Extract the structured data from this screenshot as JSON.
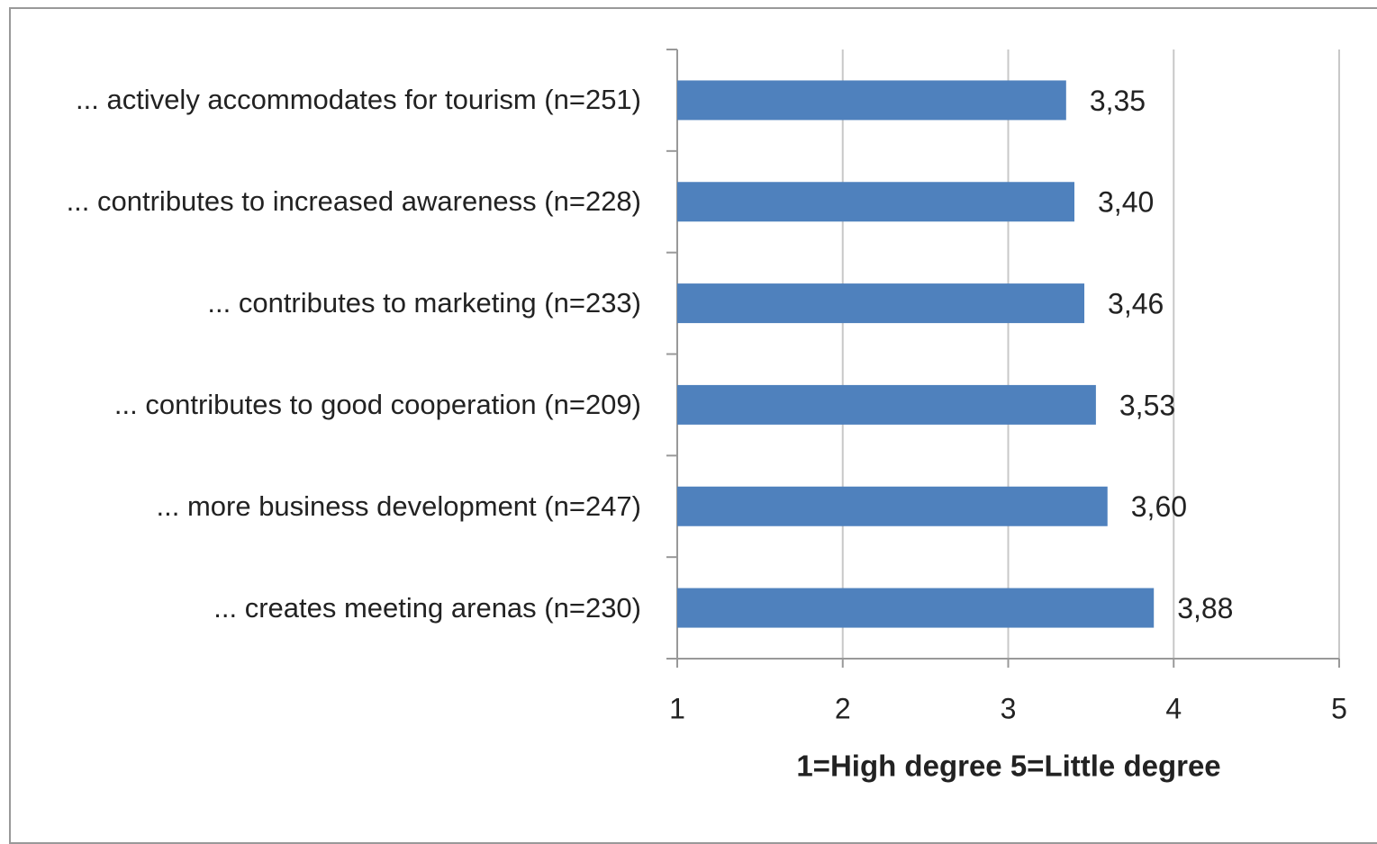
{
  "chart_data": {
    "type": "bar",
    "orientation": "horizontal",
    "categories": [
      "... actively accommodates for tourism (n=251)",
      "... contributes to increased awareness (n=228)",
      "... contributes to marketing (n=233)",
      "... contributes to good cooperation (n=209)",
      "... more business development (n=247)",
      "... creates meeting arenas (n=230)"
    ],
    "values": [
      3.35,
      3.4,
      3.46,
      3.53,
      3.6,
      3.88
    ],
    "value_labels": [
      "3,35",
      "3,40",
      "3,46",
      "3,53",
      "3,60",
      "3,88"
    ],
    "color": "#4f81bd",
    "xlim": [
      1,
      5
    ],
    "xticks": [
      1,
      2,
      3,
      4,
      5
    ],
    "grid": true,
    "xlabel": "1=High degree 5=Little degree"
  }
}
